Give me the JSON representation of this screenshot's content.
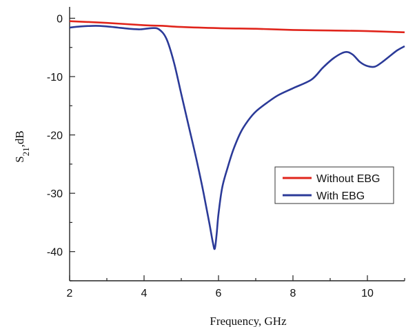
{
  "chart_data": {
    "type": "line",
    "title": "",
    "xlabel": "Frequency, GHz",
    "ylabel": "S21,dB",
    "xlim": [
      2,
      11
    ],
    "ylim": [
      -45,
      1
    ],
    "x_ticks": [
      2,
      4,
      6,
      8,
      10
    ],
    "y_ticks": [
      0,
      -10,
      -20,
      -30,
      -40
    ],
    "grid": false,
    "legend_position": "right",
    "series": [
      {
        "name": "Without EBG",
        "color": "#e0241b",
        "x": [
          2,
          3,
          4,
          4.5,
          5,
          6,
          7,
          8,
          9,
          10,
          11
        ],
        "y": [
          -0.5,
          -0.8,
          -1.2,
          -1.3,
          -1.5,
          -1.7,
          -1.8,
          -2.0,
          -2.1,
          -2.2,
          -2.4
        ]
      },
      {
        "name": "With EBG",
        "color": "#2b3a98",
        "x": [
          2,
          2.3,
          2.7,
          3,
          3.3,
          3.6,
          3.9,
          4.2,
          4.4,
          4.6,
          4.8,
          5.0,
          5.2,
          5.4,
          5.6,
          5.75,
          5.85,
          5.9,
          5.95,
          6.0,
          6.1,
          6.25,
          6.4,
          6.6,
          6.8,
          7.0,
          7.3,
          7.6,
          8.0,
          8.5,
          8.8,
          9.1,
          9.4,
          9.6,
          9.8,
          10.0,
          10.2,
          10.4,
          10.6,
          10.8,
          11.0
        ],
        "y": [
          -1.6,
          -1.4,
          -1.3,
          -1.4,
          -1.6,
          -1.8,
          -1.9,
          -1.7,
          -1.9,
          -3.5,
          -7.5,
          -13.0,
          -18.5,
          -24.0,
          -30.0,
          -35.0,
          -38.5,
          -39.5,
          -37.0,
          -33.5,
          -29.0,
          -25.5,
          -22.5,
          -19.5,
          -17.5,
          -16.0,
          -14.5,
          -13.2,
          -12.0,
          -10.5,
          -8.5,
          -6.8,
          -5.8,
          -6.2,
          -7.5,
          -8.2,
          -8.3,
          -7.5,
          -6.5,
          -5.5,
          -4.8
        ]
      }
    ]
  }
}
